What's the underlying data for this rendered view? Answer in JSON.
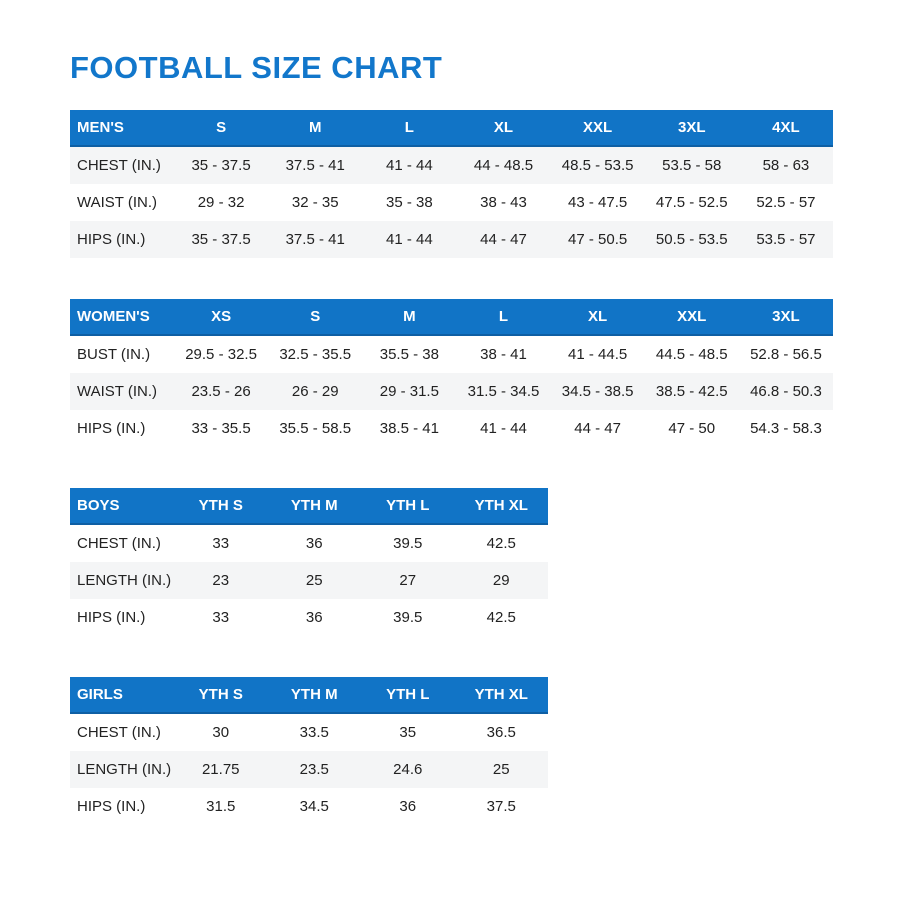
{
  "page": {
    "title": "FOOTBALL SIZE CHART"
  },
  "colors": {
    "title_text": "#1277cb",
    "table_header_bg": "#1174c6",
    "table_header_text": "#ffffff",
    "row_stripe_bg": "#f4f5f6",
    "body_text": "#222222"
  },
  "tables": [
    {
      "id": "mens",
      "header": [
        "MEN'S",
        "S",
        "M",
        "L",
        "XL",
        "XXL",
        "3XL",
        "4XL"
      ],
      "rows": [
        [
          "CHEST (IN.)",
          "35 - 37.5",
          "37.5 - 41",
          "41 - 44",
          "44 - 48.5",
          "48.5 - 53.5",
          "53.5 - 58",
          "58 - 63"
        ],
        [
          "WAIST (IN.)",
          "29 - 32",
          "32 - 35",
          "35 - 38",
          "38 - 43",
          "43 - 47.5",
          "47.5 - 52.5",
          "52.5 - 57"
        ],
        [
          "HIPS (IN.)",
          "35 - 37.5",
          "37.5 - 41",
          "41 - 44",
          "44 - 47",
          "47 - 50.5",
          "50.5 - 53.5",
          "53.5 - 57"
        ]
      ]
    },
    {
      "id": "womens",
      "header": [
        "WOMEN'S",
        "XS",
        "S",
        "M",
        "L",
        "XL",
        "XXL",
        "3XL"
      ],
      "rows": [
        [
          "BUST (IN.)",
          "29.5 - 32.5",
          "32.5 - 35.5",
          "35.5 - 38",
          "38 - 41",
          "41 - 44.5",
          "44.5 - 48.5",
          "52.8 - 56.5"
        ],
        [
          "WAIST (IN.)",
          "23.5 - 26",
          "26 - 29",
          "29 - 31.5",
          "31.5 - 34.5",
          "34.5 - 38.5",
          "38.5 - 42.5",
          "46.8 - 50.3"
        ],
        [
          "HIPS (IN.)",
          "33 - 35.5",
          "35.5 - 58.5",
          "38.5 - 41",
          "41 - 44",
          "44 - 47",
          "47 - 50",
          "54.3 - 58.3"
        ]
      ]
    },
    {
      "id": "boys",
      "header": [
        "BOYS",
        "YTH S",
        "YTH M",
        "YTH L",
        "YTH XL"
      ],
      "rows": [
        [
          "CHEST (IN.)",
          "33",
          "36",
          "39.5",
          "42.5"
        ],
        [
          "LENGTH (IN.)",
          "23",
          "25",
          "27",
          "29"
        ],
        [
          "HIPS (IN.)",
          "33",
          "36",
          "39.5",
          "42.5"
        ]
      ]
    },
    {
      "id": "girls",
      "header": [
        "GIRLS",
        "YTH S",
        "YTH M",
        "YTH L",
        "YTH XL"
      ],
      "rows": [
        [
          "CHEST (IN.)",
          "30",
          "33.5",
          "35",
          "36.5"
        ],
        [
          "LENGTH (IN.)",
          "21.75",
          "23.5",
          "24.6",
          "25"
        ],
        [
          "HIPS (IN.)",
          "31.5",
          "34.5",
          "36",
          "37.5"
        ]
      ]
    }
  ]
}
